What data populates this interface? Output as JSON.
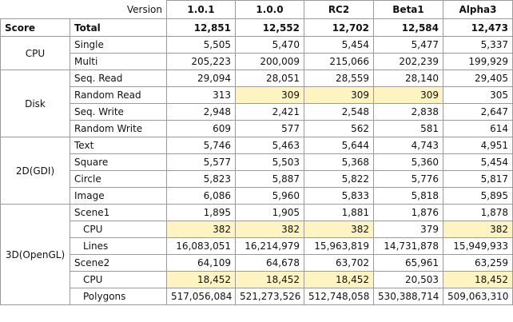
{
  "header": {
    "version_label": "Version",
    "versions": [
      "1.0.1",
      "1.0.0",
      "RC2",
      "Beta1",
      "Alpha3"
    ]
  },
  "total_row": {
    "col1": "Score",
    "col2": "Total",
    "values": [
      "12,851",
      "12,552",
      "12,702",
      "12,584",
      "12,473"
    ]
  },
  "groups": [
    {
      "name": "CPU",
      "rows": [
        {
          "label": "Single",
          "values": [
            "5,505",
            "5,470",
            "5,454",
            "5,477",
            "5,337"
          ],
          "highlight": [
            false,
            false,
            false,
            false,
            false
          ],
          "indent": false
        },
        {
          "label": "Multi",
          "values": [
            "205,223",
            "200,009",
            "215,066",
            "202,239",
            "199,929"
          ],
          "highlight": [
            false,
            false,
            false,
            false,
            false
          ],
          "indent": false
        }
      ]
    },
    {
      "name": "Disk",
      "rows": [
        {
          "label": "Seq. Read",
          "values": [
            "29,094",
            "28,051",
            "28,559",
            "28,140",
            "29,405"
          ],
          "highlight": [
            false,
            false,
            false,
            false,
            false
          ],
          "indent": false
        },
        {
          "label": "Random Read",
          "values": [
            "313",
            "309",
            "309",
            "309",
            "305"
          ],
          "highlight": [
            false,
            true,
            true,
            true,
            false
          ],
          "indent": false
        },
        {
          "label": "Seq. Write",
          "values": [
            "2,948",
            "2,421",
            "2,548",
            "2,838",
            "2,647"
          ],
          "highlight": [
            false,
            false,
            false,
            false,
            false
          ],
          "indent": false
        },
        {
          "label": "Random Write",
          "values": [
            "609",
            "577",
            "562",
            "581",
            "614"
          ],
          "highlight": [
            false,
            false,
            false,
            false,
            false
          ],
          "indent": false
        }
      ]
    },
    {
      "name": "2D(GDI)",
      "rows": [
        {
          "label": "Text",
          "values": [
            "5,746",
            "5,463",
            "5,644",
            "4,743",
            "4,951"
          ],
          "highlight": [
            false,
            false,
            false,
            false,
            false
          ],
          "indent": false
        },
        {
          "label": "Square",
          "values": [
            "5,577",
            "5,503",
            "5,368",
            "5,360",
            "5,454"
          ],
          "highlight": [
            false,
            false,
            false,
            false,
            false
          ],
          "indent": false
        },
        {
          "label": "Circle",
          "values": [
            "5,823",
            "5,887",
            "5,822",
            "5,776",
            "5,817"
          ],
          "highlight": [
            false,
            false,
            false,
            false,
            false
          ],
          "indent": false
        },
        {
          "label": "Image",
          "values": [
            "6,086",
            "5,960",
            "5,833",
            "5,818",
            "5,895"
          ],
          "highlight": [
            false,
            false,
            false,
            false,
            false
          ],
          "indent": false
        }
      ]
    },
    {
      "name": "3D(OpenGL)",
      "rows": [
        {
          "label": "Scene1",
          "values": [
            "1,895",
            "1,905",
            "1,881",
            "1,876",
            "1,878"
          ],
          "highlight": [
            false,
            false,
            false,
            false,
            false
          ],
          "indent": false
        },
        {
          "label": "CPU",
          "values": [
            "382",
            "382",
            "382",
            "379",
            "382"
          ],
          "highlight": [
            true,
            true,
            true,
            false,
            true
          ],
          "indent": true
        },
        {
          "label": "Lines",
          "values": [
            "16,083,051",
            "16,214,979",
            "15,963,819",
            "14,731,878",
            "15,949,933"
          ],
          "highlight": [
            false,
            false,
            false,
            false,
            false
          ],
          "indent": true
        },
        {
          "label": "Scene2",
          "values": [
            "64,109",
            "64,678",
            "63,702",
            "65,961",
            "63,259"
          ],
          "highlight": [
            false,
            false,
            false,
            false,
            false
          ],
          "indent": false
        },
        {
          "label": "CPU",
          "values": [
            "18,452",
            "18,452",
            "18,452",
            "20,503",
            "18,452"
          ],
          "highlight": [
            true,
            true,
            true,
            false,
            true
          ],
          "indent": true
        },
        {
          "label": "Polygons",
          "values": [
            "517,056,084",
            "521,273,526",
            "512,748,058",
            "530,388,714",
            "509,063,310"
          ],
          "highlight": [
            false,
            false,
            false,
            false,
            false
          ],
          "indent": true
        }
      ]
    }
  ],
  "colors": {
    "highlight": "#fdf4c2",
    "border": "#9a9a9a",
    "text": "#111111"
  }
}
